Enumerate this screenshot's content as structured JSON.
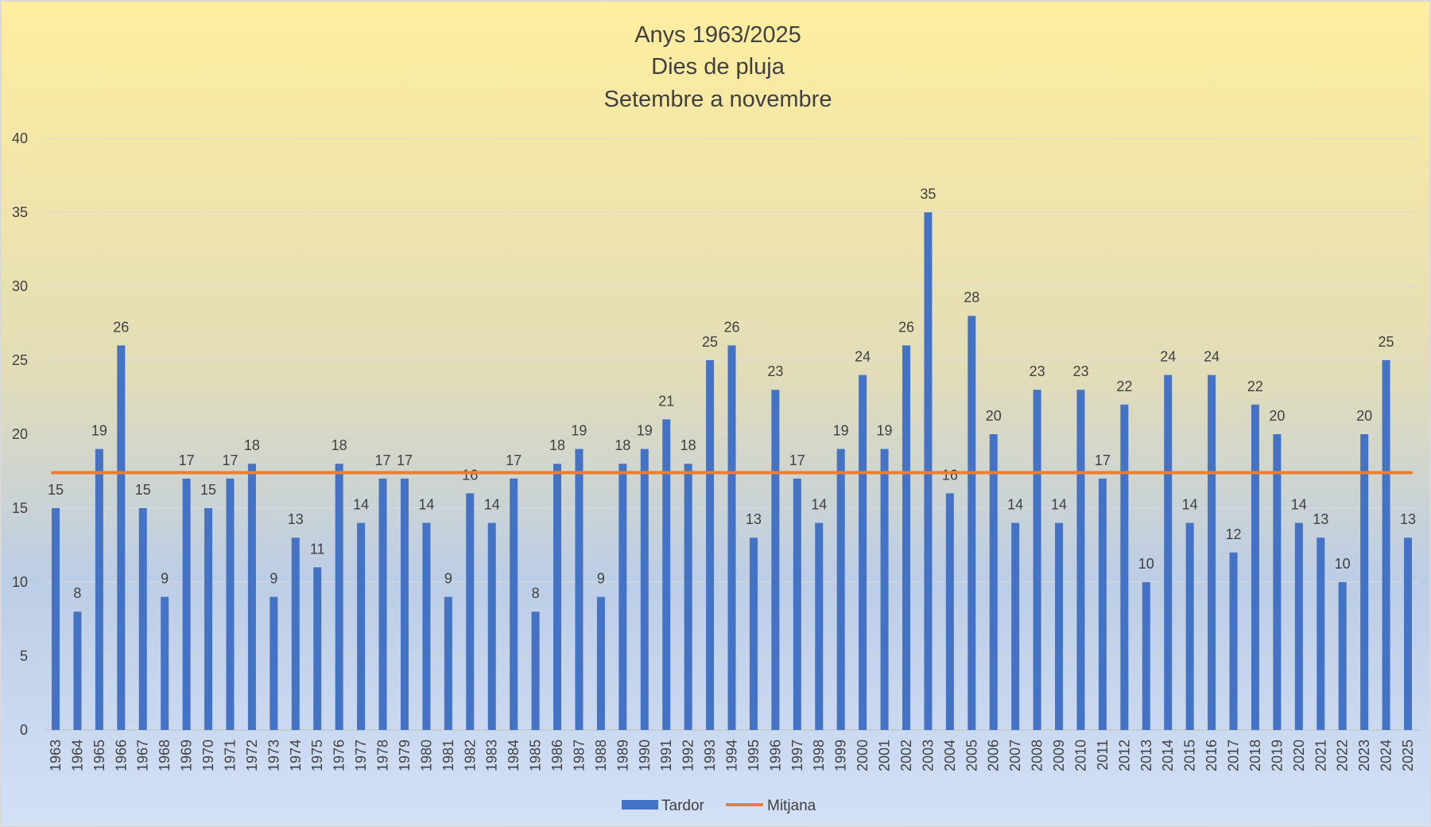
{
  "chart_data": {
    "type": "bar",
    "title_lines": [
      "Anys 1963/2025",
      "Dies de pluja",
      "Setembre a novembre"
    ],
    "categories": [
      "1963",
      "1964",
      "1965",
      "1966",
      "1967",
      "1968",
      "1969",
      "1970",
      "1971",
      "1972",
      "1973",
      "1974",
      "1975",
      "1976",
      "1977",
      "1978",
      "1979",
      "1980",
      "1981",
      "1982",
      "1983",
      "1984",
      "1985",
      "1986",
      "1987",
      "1988",
      "1989",
      "1990",
      "1991",
      "1992",
      "1993",
      "1994",
      "1995",
      "1996",
      "1997",
      "1998",
      "1999",
      "2000",
      "2001",
      "2002",
      "2003",
      "2004",
      "2005",
      "2006",
      "2007",
      "2008",
      "2009",
      "2010",
      "2011",
      "2012",
      "2013",
      "2014",
      "2015",
      "2016",
      "2017",
      "2018",
      "2019",
      "2020",
      "2021",
      "2022",
      "2023",
      "2024",
      "2025"
    ],
    "series": [
      {
        "name": "Tardor",
        "kind": "bar",
        "color": "#4472C4",
        "values": [
          15,
          8,
          19,
          26,
          15,
          9,
          17,
          15,
          17,
          18,
          9,
          13,
          11,
          18,
          14,
          17,
          17,
          14,
          9,
          16,
          14,
          17,
          8,
          18,
          19,
          9,
          18,
          19,
          21,
          18,
          25,
          26,
          13,
          23,
          17,
          14,
          19,
          24,
          19,
          26,
          35,
          16,
          28,
          20,
          14,
          23,
          14,
          23,
          17,
          22,
          10,
          24,
          14,
          24,
          12,
          22,
          20,
          14,
          13,
          10,
          20,
          25,
          13
        ]
      },
      {
        "name": "Mitjana",
        "kind": "line",
        "color": "#ED7D31",
        "value": 17.4
      }
    ],
    "ylim": [
      0,
      40
    ],
    "yticks": [
      0,
      5,
      10,
      15,
      20,
      25,
      30,
      35,
      40
    ],
    "grid": true,
    "legend_position": "bottom-center"
  }
}
